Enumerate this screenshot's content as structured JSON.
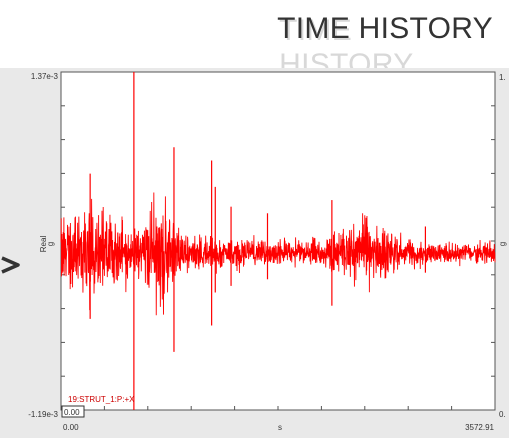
{
  "title": "TIME HISTORY",
  "chart_data": {
    "type": "line",
    "title": "TIME HISTORY",
    "xlabel": "s",
    "ylabel_top": "g",
    "ylabel_bottom": "Real",
    "xlim": [
      0.0,
      3572.91
    ],
    "ylim": [
      -0.00119,
      0.00137
    ],
    "ytick_labels": {
      "max": "1.37e-3",
      "min": "-1.19e-3"
    },
    "xtick_labels": {
      "min": "0.00",
      "max": "3572.91"
    },
    "cursor_value": "0.00",
    "right_axis_labels": {
      "top": "1.",
      "mid": "g",
      "bottom": "0."
    },
    "series": [
      {
        "name": "19:STRUT_1:P:+X",
        "color": "#ff0000",
        "baseline": 0.0,
        "envelope": [
          {
            "x": 0.0,
            "amp": 0.00045
          },
          {
            "x": 300.0,
            "amp": 0.0005
          },
          {
            "x": 600.0,
            "amp": 0.00025
          },
          {
            "x": 800.0,
            "amp": 0.0006
          },
          {
            "x": 1000.0,
            "amp": 0.0002
          },
          {
            "x": 1500.0,
            "amp": 0.00015
          },
          {
            "x": 1800.0,
            "amp": 0.00012
          },
          {
            "x": 2100.0,
            "amp": 0.00014
          },
          {
            "x": 2300.0,
            "amp": 0.00025
          },
          {
            "x": 2450.0,
            "amp": 0.0003
          },
          {
            "x": 2600.0,
            "amp": 0.00035
          },
          {
            "x": 2800.0,
            "amp": 0.00015
          },
          {
            "x": 3200.0,
            "amp": 0.0001
          },
          {
            "x": 3572.91,
            "amp": 0.00012
          }
        ],
        "spikes": [
          {
            "x": 600.0,
            "high": 0.00137,
            "low": -0.00119
          },
          {
            "x": 240.0,
            "high": 0.0006,
            "low": -0.0005
          },
          {
            "x": 930.0,
            "high": 0.0008,
            "low": -0.00075
          },
          {
            "x": 1240.0,
            "high": 0.0007,
            "low": -0.00055
          },
          {
            "x": 1270.0,
            "high": 0.0005,
            "low": -0.0003
          },
          {
            "x": 1400.0,
            "high": 0.00035,
            "low": -0.00025
          },
          {
            "x": 1700.0,
            "high": 0.0003,
            "low": -0.0002
          },
          {
            "x": 2230.0,
            "high": 0.0004,
            "low": -0.0004
          },
          {
            "x": 3000.0,
            "high": 0.0002,
            "low": -0.00015
          }
        ]
      }
    ],
    "grid": false
  }
}
